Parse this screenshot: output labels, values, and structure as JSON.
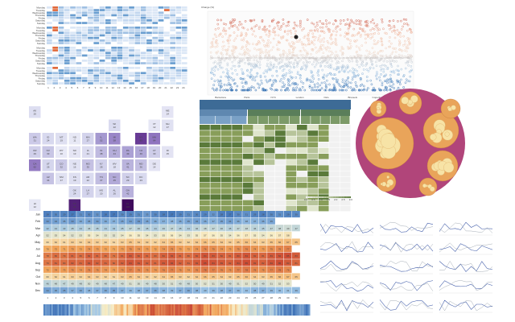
{
  "chart_data": [
    {
      "type": "heatmap",
      "panel": "calendar-heatmaps",
      "title": "",
      "rows": [
        "Monday",
        "Tuesday",
        "Wednesday",
        "Thursday",
        "Friday",
        "Saturday",
        "Sunday"
      ],
      "groups": 4,
      "columns": 24,
      "colors": [
        "#dbe7f6",
        "#c3d7ef",
        "#9fc0e3",
        "#6a9ed0",
        "#e06a3c"
      ]
    },
    {
      "type": "scatter",
      "panel": "diverging-scatter",
      "title": "Change (%)",
      "x_categories": [
        "Barcelona",
        "Paris",
        "NYC",
        "London",
        "Oslo",
        "Brussels",
        "Copenhagen",
        "Amsterdam"
      ],
      "colors": {
        "high": "#c0392b",
        "mid": "#f2d9c8",
        "low": "#2c6bb0"
      }
    },
    {
      "type": "heatmap",
      "panel": "tile-grid-map",
      "tiles": [
        {
          "label": "AK",
          "value": "20",
          "col": 0,
          "row": 0
        },
        {
          "label": "ME",
          "value": "14",
          "col": 10,
          "row": 0
        },
        {
          "label": "WI",
          "value": "22",
          "col": 6,
          "row": 1
        },
        {
          "label": "VT",
          "value": "12",
          "col": 9,
          "row": 1
        },
        {
          "label": "NH",
          "value": "17",
          "col": 10,
          "row": 1
        },
        {
          "label": "WA",
          "value": "31",
          "col": 0,
          "row": 2
        },
        {
          "label": "ID",
          "value": "24",
          "col": 1,
          "row": 2
        },
        {
          "label": "MT",
          "value": "19",
          "col": 2,
          "row": 2
        },
        {
          "label": "ND",
          "value": "11",
          "col": 3,
          "row": 2
        },
        {
          "label": "MN",
          "value": "27",
          "col": 4,
          "row": 2
        },
        {
          "label": "IL",
          "value": "52",
          "col": 5,
          "row": 2
        },
        {
          "label": "MI",
          "value": "58",
          "col": 6,
          "row": 2
        },
        {
          "label": "NY",
          "value": "83",
          "col": 8,
          "row": 2
        },
        {
          "label": "MA",
          "value": "64",
          "col": 9,
          "row": 2
        },
        {
          "label": "OR",
          "value": "29",
          "col": 0,
          "row": 3
        },
        {
          "label": "NV",
          "value": "33",
          "col": 1,
          "row": 3
        },
        {
          "label": "WY",
          "value": "10",
          "col": 2,
          "row": 3
        },
        {
          "label": "SD",
          "value": "13",
          "col": 3,
          "row": 3
        },
        {
          "label": "IA",
          "value": "21",
          "col": 4,
          "row": 3
        },
        {
          "label": "IN",
          "value": "38",
          "col": 5,
          "row": 3
        },
        {
          "label": "OH",
          "value": "44",
          "col": 6,
          "row": 3
        },
        {
          "label": "PA",
          "value": "49",
          "col": 7,
          "row": 3
        },
        {
          "label": "NJ",
          "value": "46",
          "col": 8,
          "row": 3
        },
        {
          "label": "CT",
          "value": "30",
          "col": 9,
          "row": 3
        },
        {
          "label": "RI",
          "value": "15",
          "col": 10,
          "row": 3
        },
        {
          "label": "CA",
          "value": "62",
          "col": 0,
          "row": 4
        },
        {
          "label": "UT",
          "value": "26",
          "col": 1,
          "row": 4
        },
        {
          "label": "CO",
          "value": "32",
          "col": 2,
          "row": 4
        },
        {
          "label": "NE",
          "value": "16",
          "col": 3,
          "row": 4
        },
        {
          "label": "MO",
          "value": "35",
          "col": 4,
          "row": 4
        },
        {
          "label": "KY",
          "value": "28",
          "col": 5,
          "row": 4
        },
        {
          "label": "WV",
          "value": "18",
          "col": 6,
          "row": 4
        },
        {
          "label": "VA",
          "value": "41",
          "col": 7,
          "row": 4
        },
        {
          "label": "MD",
          "value": "36",
          "col": 8,
          "row": 4
        },
        {
          "label": "DE",
          "value": "14",
          "col": 9,
          "row": 4
        },
        {
          "label": "AZ",
          "value": "34",
          "col": 1,
          "row": 5
        },
        {
          "label": "NM",
          "value": "17",
          "col": 2,
          "row": 5
        },
        {
          "label": "KS",
          "value": "19",
          "col": 3,
          "row": 5
        },
        {
          "label": "AR",
          "value": "22",
          "col": 4,
          "row": 5
        },
        {
          "label": "TN",
          "value": "37",
          "col": 5,
          "row": 5
        },
        {
          "label": "NC",
          "value": "45",
          "col": 6,
          "row": 5
        },
        {
          "label": "SC",
          "value": "29",
          "col": 7,
          "row": 5
        },
        {
          "label": "DC",
          "value": "23",
          "col": 8,
          "row": 5
        },
        {
          "label": "OK",
          "value": "24",
          "col": 3,
          "row": 6
        },
        {
          "label": "LA",
          "value": "27",
          "col": 4,
          "row": 6
        },
        {
          "label": "MS",
          "value": "20",
          "col": 5,
          "row": 6
        },
        {
          "label": "AL",
          "value": "26",
          "col": 6,
          "row": 6
        },
        {
          "label": "GA",
          "value": "42",
          "col": 7,
          "row": 6
        },
        {
          "label": "HI",
          "value": "12",
          "col": 0,
          "row": 7
        },
        {
          "label": "TX",
          "value": "92",
          "col": 3,
          "row": 7
        },
        {
          "label": "FL",
          "value": "100",
          "col": 7,
          "row": 7
        }
      ],
      "colors": [
        "#f4f4fb",
        "#d7d8ee",
        "#a99fd3",
        "#7b52b0",
        "#3f0a5c"
      ]
    },
    {
      "type": "table",
      "panel": "hierarchical-table",
      "header_color": "#3d6b96",
      "column_groups": 3,
      "colors": [
        "#5a7a3a",
        "#889e5a",
        "#b7c49a",
        "#dfe5cc",
        "#f1f1f1"
      ],
      "legend_ticks": [
        "0.0",
        "0.5",
        "1.0",
        "1.5",
        "2.0",
        "2.5",
        "3.0"
      ]
    },
    {
      "type": "pie",
      "panel": "circle-packing",
      "colors": {
        "outer": "#b1457a",
        "mid": "#e9a45a",
        "leaf": "#f7e3a6"
      }
    },
    {
      "type": "heatmap",
      "panel": "month-day-heatmap",
      "rows": [
        "Jan",
        "Feb",
        "Mar",
        "Apr",
        "May",
        "Jun",
        "Jul",
        "Aug",
        "Sep",
        "Oct",
        "Nov",
        "Dec"
      ],
      "columns": [
        "1",
        "2",
        "3",
        "4",
        "5",
        "6",
        "7",
        "8",
        "9",
        "10",
        "11",
        "12",
        "13",
        "14",
        "15",
        "16",
        "17",
        "18",
        "19",
        "20",
        "21",
        "22",
        "23",
        "24",
        "25",
        "26",
        "27",
        "28",
        "29",
        "30",
        "31"
      ],
      "values": [
        [
          28,
          30,
          29,
          27,
          31,
          30,
          32,
          28,
          27,
          30,
          29,
          31,
          33,
          30,
          28,
          27,
          29,
          31,
          30,
          29,
          32,
          28,
          27,
          30,
          31,
          29,
          28,
          30,
          31,
          29,
          30
        ],
        [
          33,
          34,
          35,
          33,
          36,
          35,
          34,
          36,
          37,
          35,
          34,
          33,
          35,
          36,
          37,
          38,
          36,
          35,
          34,
          36,
          37,
          35,
          34,
          36,
          38,
          37,
          36,
          35,
          0,
          0,
          0
        ],
        [
          42,
          44,
          43,
          45,
          44,
          46,
          45,
          44,
          43,
          45,
          47,
          46,
          45,
          44,
          46,
          47,
          45,
          44,
          46,
          48,
          47,
          46,
          45,
          47,
          48,
          46,
          45,
          47,
          48,
          49,
          47
        ],
        [
          52,
          53,
          54,
          52,
          53,
          55,
          54,
          53,
          52,
          54,
          56,
          55,
          54,
          53,
          55,
          56,
          54,
          53,
          55,
          57,
          56,
          55,
          54,
          56,
          57,
          55,
          54,
          56,
          57,
          58,
          0
        ],
        [
          60,
          62,
          61,
          63,
          62,
          64,
          63,
          62,
          61,
          63,
          65,
          64,
          63,
          62,
          64,
          65,
          63,
          62,
          64,
          66,
          65,
          64,
          63,
          65,
          66,
          64,
          63,
          65,
          66,
          67,
          65
        ],
        [
          70,
          72,
          71,
          73,
          72,
          74,
          73,
          72,
          71,
          73,
          75,
          74,
          73,
          72,
          74,
          75,
          73,
          72,
          74,
          76,
          75,
          74,
          73,
          75,
          76,
          74,
          73,
          75,
          76,
          77,
          0
        ],
        [
          78,
          80,
          79,
          81,
          80,
          82,
          81,
          80,
          79,
          81,
          83,
          82,
          81,
          80,
          82,
          83,
          81,
          80,
          82,
          84,
          83,
          82,
          81,
          83,
          84,
          82,
          81,
          83,
          84,
          85,
          83
        ],
        [
          79,
          81,
          80,
          82,
          81,
          83,
          82,
          81,
          80,
          82,
          84,
          83,
          82,
          81,
          83,
          84,
          82,
          81,
          83,
          85,
          84,
          83,
          82,
          84,
          85,
          83,
          82,
          84,
          85,
          83,
          81
        ],
        [
          72,
          74,
          73,
          75,
          74,
          76,
          75,
          74,
          73,
          75,
          77,
          76,
          75,
          74,
          76,
          77,
          75,
          74,
          76,
          78,
          77,
          76,
          75,
          77,
          78,
          76,
          75,
          77,
          78,
          76,
          0
        ],
        [
          60,
          62,
          61,
          63,
          62,
          64,
          63,
          62,
          61,
          63,
          65,
          64,
          63,
          62,
          64,
          65,
          63,
          62,
          64,
          66,
          65,
          64,
          63,
          65,
          66,
          64,
          63,
          65,
          66,
          67,
          65
        ],
        [
          46,
          48,
          47,
          49,
          48,
          50,
          49,
          48,
          47,
          49,
          51,
          50,
          49,
          48,
          50,
          51,
          49,
          48,
          50,
          52,
          51,
          50,
          49,
          51,
          52,
          50,
          49,
          51,
          52,
          53,
          0
        ],
        [
          34,
          36,
          35,
          37,
          36,
          38,
          37,
          36,
          35,
          37,
          39,
          38,
          37,
          36,
          38,
          39,
          37,
          36,
          38,
          40,
          39,
          38,
          37,
          39,
          40,
          38,
          37,
          39,
          40,
          41,
          39
        ]
      ],
      "colors": [
        "#3b6fb6",
        "#9bc3e4",
        "#f6edc6",
        "#f2a65a",
        "#c7402e"
      ]
    },
    {
      "type": "line",
      "panel": "small-multiples",
      "rows": 5,
      "columns": 3,
      "colors": {
        "series_a": "#3e5aa8",
        "series_b": "#9aa3ad"
      }
    }
  ]
}
